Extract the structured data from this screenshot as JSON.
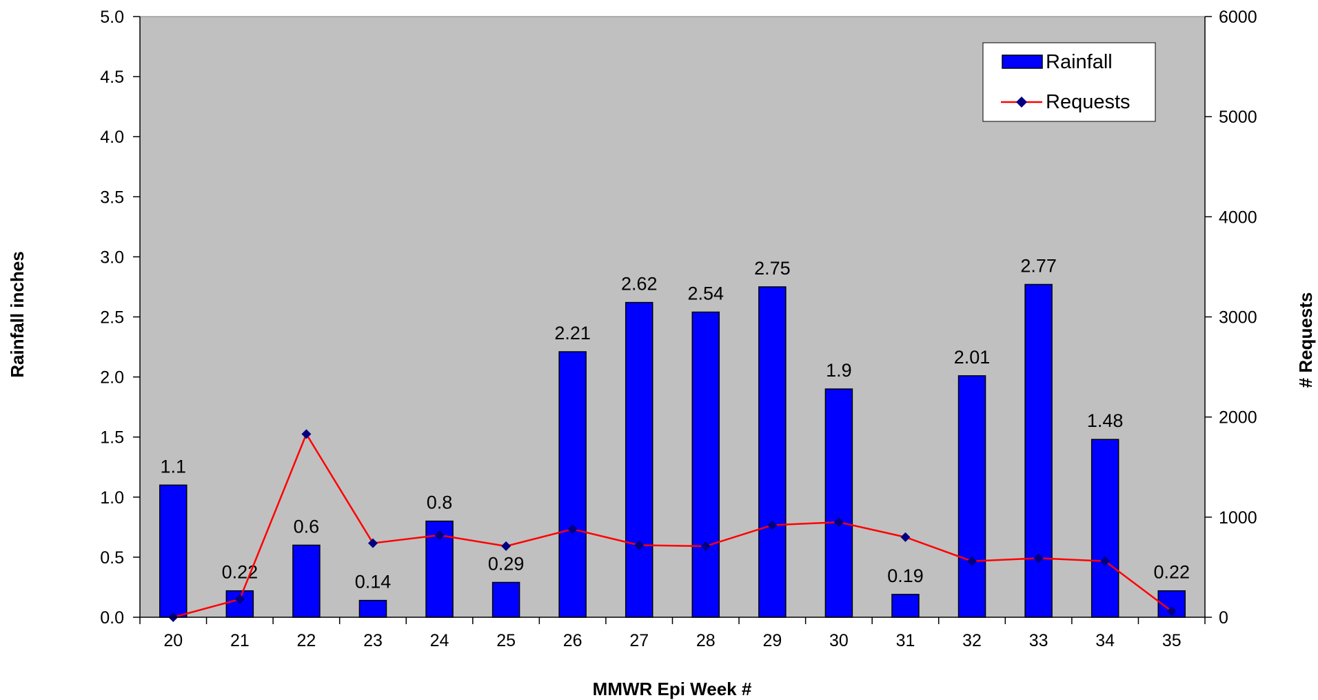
{
  "chart_data": {
    "type": "bar+line",
    "title": "",
    "xlabel": "MMWR Epi Week #",
    "ylabel_left": "Rainfall inches",
    "ylabel_right": "# Requests",
    "categories": [
      "20",
      "21",
      "22",
      "23",
      "24",
      "25",
      "26",
      "27",
      "28",
      "29",
      "30",
      "31",
      "32",
      "33",
      "34",
      "35"
    ],
    "ylim_left": [
      0,
      5
    ],
    "yticks_left": [
      "0.0",
      "0.5",
      "1.0",
      "1.5",
      "2.0",
      "2.5",
      "3.0",
      "3.5",
      "4.0",
      "4.5",
      "5.0"
    ],
    "ylim_right": [
      0,
      6000
    ],
    "yticks_right": [
      "0",
      "1000",
      "2000",
      "3000",
      "4000",
      "5000",
      "6000"
    ],
    "series": [
      {
        "name": "Rainfall",
        "kind": "bar",
        "axis": "left",
        "color": "#0000FF",
        "values": [
          1.1,
          0.22,
          0.6,
          0.14,
          0.8,
          0.29,
          2.21,
          2.62,
          2.54,
          2.75,
          1.9,
          0.19,
          2.01,
          2.77,
          1.48,
          0.22
        ],
        "labels": [
          "1.1",
          "0.22",
          "0.6",
          "0.14",
          "0.8",
          "0.29",
          "2.21",
          "2.62",
          "2.54",
          "2.75",
          "1.9",
          "0.19",
          "2.01",
          "2.77",
          "1.48",
          "0.22"
        ]
      },
      {
        "name": "Requests",
        "kind": "line",
        "axis": "right",
        "color": "#FF0000",
        "marker_color": "#000080",
        "values": [
          0,
          180,
          1830,
          740,
          820,
          710,
          880,
          720,
          710,
          920,
          950,
          800,
          560,
          590,
          560,
          60
        ]
      }
    ],
    "plot_background": "#C0C0C0",
    "legend_position": "top-right",
    "grid": false
  }
}
